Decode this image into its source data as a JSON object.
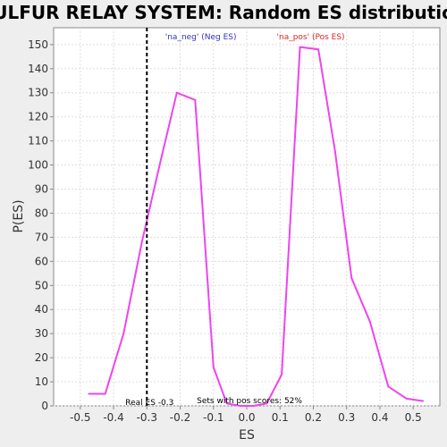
{
  "chart_data": {
    "type": "line",
    "title": "SULFUR RELAY SYSTEM: Random ES distribution",
    "xlabel": "ES",
    "ylabel": "P(ES)",
    "xlim": [
      -0.58,
      0.58
    ],
    "ylim": [
      0,
      157
    ],
    "xticks": [
      "-0.5",
      "-0.4",
      "-0.3",
      "-0.2",
      "-0.1",
      "0.0",
      "0.1",
      "0.2",
      "0.3",
      "0.4",
      "0.5"
    ],
    "xtick_values": [
      -0.5,
      -0.4,
      -0.3,
      -0.2,
      -0.1,
      0.0,
      0.1,
      0.2,
      0.3,
      0.4,
      0.5
    ],
    "yticks": [
      0,
      10,
      20,
      30,
      40,
      50,
      60,
      70,
      80,
      90,
      100,
      110,
      120,
      130,
      140,
      150
    ],
    "grid": true,
    "series": [
      {
        "color": "#ee44ee",
        "x": [
          -0.475,
          -0.425,
          -0.37,
          -0.315,
          -0.26,
          -0.21,
          -0.155,
          -0.1,
          -0.06,
          -0.02,
          0.02,
          0.06,
          0.105,
          0.16,
          0.215,
          0.265,
          0.315,
          0.37,
          0.425,
          0.48,
          0.53
        ],
        "y": [
          5,
          5,
          30,
          68,
          101,
          130,
          127,
          16,
          1,
          0,
          0,
          1,
          13,
          149,
          148,
          106,
          53,
          35,
          8,
          3,
          2
        ]
      }
    ],
    "real_es": {
      "x": -0.3,
      "color": "#000000"
    },
    "annotations": {
      "neg_label": "'na_neg' (Neg ES)",
      "neg_color": "#3333bb",
      "pos_label": "'na_pos' (Pos ES)",
      "pos_color": "#dd2222",
      "real_es_label": "Real ES -0.3",
      "pos_scores_label": "Sets with pos scores: 52%"
    }
  }
}
